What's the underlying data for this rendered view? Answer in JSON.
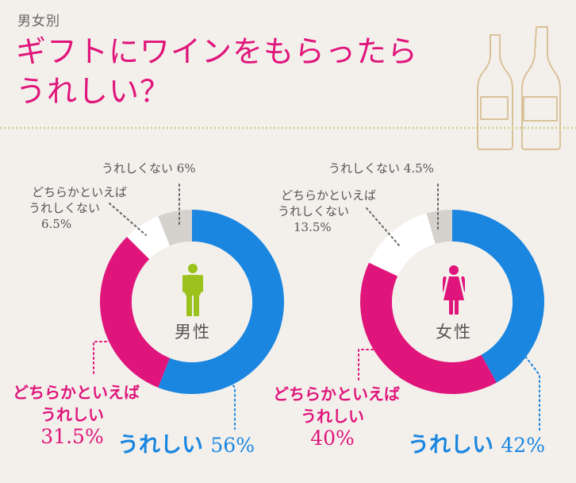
{
  "header": {
    "subtitle": "男女別",
    "title_line1": "ギフトにワインをもらったら",
    "title_line2": "うれしい？"
  },
  "colors": {
    "ureshii": "#1a86e0",
    "dochiraka_ureshii": "#e0157b",
    "dochiraka_ureshikunai": "#ffffff",
    "ureshikunai": "#d5d1cc",
    "male_icon": "#9bc21c",
    "female_icon": "#e0157b",
    "divider": "#c8d28a"
  },
  "icons": {
    "male": "male-person-icon",
    "female": "female-person-icon",
    "bottles": "wine-bottles-icon"
  },
  "chart_data": [
    {
      "type": "pie",
      "subtype": "donut",
      "center_label": "男性",
      "categories": [
        "うれしい",
        "どちらかといえばうれしい",
        "どちらかといえばうれしくない",
        "うれしくない"
      ],
      "values": [
        56,
        31.5,
        6.5,
        6
      ],
      "value_labels": [
        "56%",
        "31.5%",
        "6.5%",
        "6%"
      ],
      "label_texts": [
        "うれしい",
        "どちらかといえば|うれしい",
        "どちらかといえば|うれしくない",
        "うれしくない"
      ]
    },
    {
      "type": "pie",
      "subtype": "donut",
      "center_label": "女性",
      "categories": [
        "うれしい",
        "どちらかといえばうれしい",
        "どちらかといえばうれしくない",
        "うれしくない"
      ],
      "values": [
        42,
        40,
        13.5,
        4.5
      ],
      "value_labels": [
        "42%",
        "40%",
        "13.5%",
        "4.5%"
      ],
      "label_texts": [
        "うれしい",
        "どちらかといえば|うれしい",
        "どちらかといえば|うれしくない",
        "うれしくない"
      ]
    }
  ]
}
